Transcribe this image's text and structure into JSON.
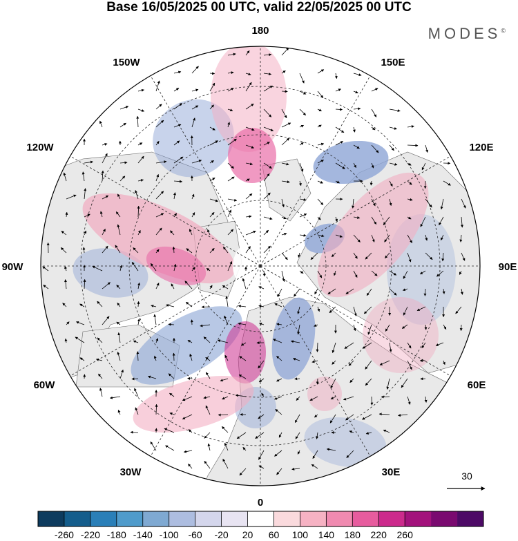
{
  "title": "Base 16/05/2025 00 UTC, valid 22/05/2025 00 UTC",
  "brand": "MODES",
  "brand_mark": "©",
  "longitude_labels": [
    "180",
    "150E",
    "120E",
    "90E",
    "60E",
    "30E",
    "0",
    "30W",
    "60W",
    "90W",
    "120W",
    "150W"
  ],
  "vector_scale": {
    "label": "30"
  },
  "colorbar": {
    "ticks": [
      "-260",
      "-220",
      "-180",
      "-140",
      "-100",
      "-60",
      "-20",
      "20",
      "60",
      "100",
      "140",
      "180",
      "220",
      "260"
    ],
    "colors": [
      "#0d3b5e",
      "#145d8c",
      "#2a7fb8",
      "#4f9bcb",
      "#7fa9d2",
      "#adbde0",
      "#d4d6ec",
      "#e8e4f2",
      "#ffffff",
      "#fadadd",
      "#f6b2c3",
      "#f08ab0",
      "#e75c9e",
      "#cc2a8c",
      "#a3127c",
      "#7a0a70",
      "#4d0a66"
    ]
  },
  "anomaly_colors": {
    "negative": "#8fa6d6",
    "positive": "#f2a7bd",
    "land": "#e9e9e9"
  }
}
